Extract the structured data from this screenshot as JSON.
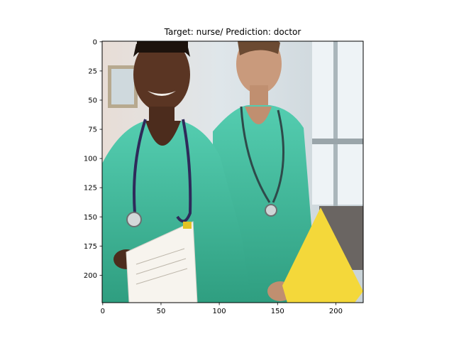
{
  "figure": {
    "title": "Target: nurse/ Prediction: doctor"
  },
  "chart_data": {
    "type": "image",
    "title": "Target: nurse/ Prediction: doctor",
    "image_description_tokens": [
      "two-people-in-green-scrubs",
      "stethoscopes",
      "white-folder",
      "yellow-folder"
    ],
    "xlim": [
      -0.5,
      223.5
    ],
    "ylim": [
      223.5,
      -0.5
    ],
    "x_ticks": [
      0,
      50,
      100,
      150,
      200
    ],
    "y_ticks": [
      0,
      25,
      50,
      75,
      100,
      125,
      150,
      175,
      200
    ],
    "grid": false
  },
  "colors": {
    "scrubs": "#3fbf9b",
    "scrubs_dark": "#2d9d7c",
    "background_light": "#dfe6ea",
    "skin_dark": "#5a3523",
    "skin_light": "#c99a7c",
    "folder_yellow": "#f4d83a",
    "folder_white": "#f7f4ee",
    "stethoscope": "#2e2a5a"
  }
}
